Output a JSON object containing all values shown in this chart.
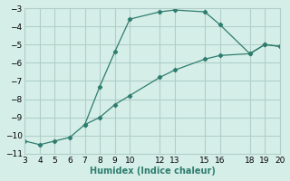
{
  "series1_x": [
    3,
    4,
    5,
    6,
    7,
    8,
    9,
    10,
    12,
    13,
    15,
    16,
    18,
    19,
    20
  ],
  "series1_y": [
    -10.3,
    -10.5,
    -10.3,
    -10.1,
    -9.4,
    -9.0,
    -8.3,
    -7.8,
    -6.8,
    -6.4,
    -5.8,
    -5.6,
    -5.5,
    -5.0,
    -5.1
  ],
  "series2_x": [
    7,
    8,
    9,
    10,
    12,
    13,
    15,
    16,
    18,
    19,
    20
  ],
  "series2_y": [
    -9.4,
    -7.3,
    -5.4,
    -3.6,
    -3.2,
    -3.1,
    -3.2,
    -3.9,
    -5.5,
    -5.0,
    -5.1
  ],
  "xlabel": "Humidex (Indice chaleur)",
  "line_color": "#2e7d6e",
  "bg_color": "#d6eee8",
  "grid_color": "#b0cfc8",
  "xlim": [
    3,
    20
  ],
  "ylim": [
    -11,
    -3
  ],
  "xticks": [
    3,
    4,
    5,
    6,
    7,
    8,
    9,
    10,
    12,
    13,
    15,
    16,
    18,
    19,
    20
  ],
  "yticks": [
    -11,
    -10,
    -9,
    -8,
    -7,
    -6,
    -5,
    -4,
    -3
  ]
}
